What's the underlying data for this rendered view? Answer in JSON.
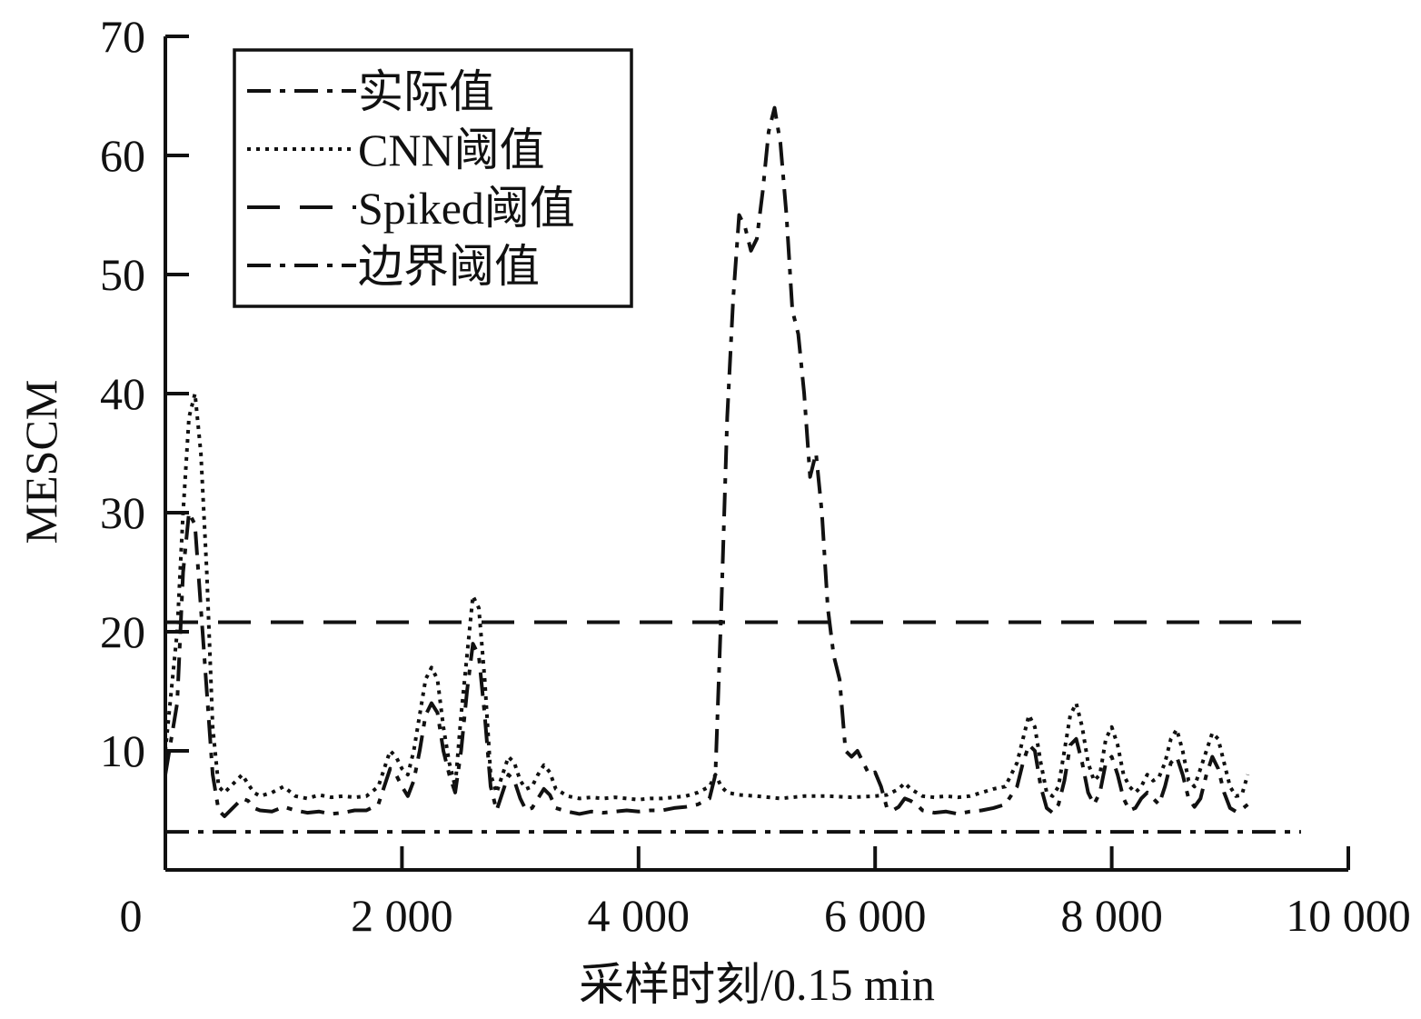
{
  "chart_data": {
    "type": "line",
    "xlabel": "采样时刻/0.15 min",
    "ylabel": "MESCM",
    "xlim": [
      0,
      10000
    ],
    "ylim": [
      0,
      70
    ],
    "xticks": [
      0,
      2000,
      4000,
      6000,
      8000,
      10000
    ],
    "xtick_labels": [
      "0",
      "2 000",
      "4 000",
      "6 000",
      "8 000",
      "10 000"
    ],
    "yticks": [
      10,
      20,
      30,
      40,
      50,
      60,
      70
    ],
    "ytick_labels": [
      "10",
      "20",
      "30",
      "40",
      "50",
      "60",
      "70"
    ],
    "grid": false,
    "legend_position": "top-left",
    "series": [
      {
        "name": "实际值",
        "dash": "dashdot",
        "points": [
          [
            0,
            8
          ],
          [
            100,
            14
          ],
          [
            150,
            25
          ],
          [
            200,
            30
          ],
          [
            250,
            29
          ],
          [
            300,
            22
          ],
          [
            350,
            15
          ],
          [
            400,
            8
          ],
          [
            450,
            5
          ],
          [
            500,
            4.5
          ],
          [
            550,
            5
          ],
          [
            600,
            5.5
          ],
          [
            650,
            6
          ],
          [
            700,
            5.8
          ],
          [
            750,
            5.2
          ],
          [
            800,
            5
          ],
          [
            900,
            4.9
          ],
          [
            1000,
            5.3
          ],
          [
            1100,
            5
          ],
          [
            1200,
            4.8
          ],
          [
            1300,
            4.9
          ],
          [
            1400,
            4.7
          ],
          [
            1500,
            4.8
          ],
          [
            1600,
            5
          ],
          [
            1700,
            5
          ],
          [
            1800,
            5.5
          ],
          [
            1850,
            7
          ],
          [
            1900,
            8.5
          ],
          [
            1950,
            8
          ],
          [
            2000,
            7
          ],
          [
            2050,
            6.2
          ],
          [
            2100,
            7.5
          ],
          [
            2150,
            10
          ],
          [
            2200,
            13
          ],
          [
            2250,
            14
          ],
          [
            2300,
            13.2
          ],
          [
            2350,
            10
          ],
          [
            2400,
            8
          ],
          [
            2450,
            6.5
          ],
          [
            2500,
            10
          ],
          [
            2550,
            15
          ],
          [
            2600,
            19
          ],
          [
            2650,
            18
          ],
          [
            2700,
            13
          ],
          [
            2750,
            7
          ],
          [
            2800,
            5
          ],
          [
            2850,
            6.5
          ],
          [
            2900,
            8
          ],
          [
            2950,
            7.5
          ],
          [
            3000,
            6
          ],
          [
            3050,
            5
          ],
          [
            3100,
            5.2
          ],
          [
            3150,
            6
          ],
          [
            3200,
            6.8
          ],
          [
            3250,
            6.3
          ],
          [
            3300,
            5.2
          ],
          [
            3400,
            4.9
          ],
          [
            3500,
            4.7
          ],
          [
            3600,
            4.9
          ],
          [
            3700,
            4.8
          ],
          [
            3800,
            4.9
          ],
          [
            3900,
            5
          ],
          [
            4000,
            4.9
          ],
          [
            4100,
            5
          ],
          [
            4200,
            5
          ],
          [
            4300,
            5.2
          ],
          [
            4400,
            5.3
          ],
          [
            4500,
            5.5
          ],
          [
            4600,
            6
          ],
          [
            4650,
            8
          ],
          [
            4700,
            22
          ],
          [
            4750,
            38
          ],
          [
            4800,
            48
          ],
          [
            4850,
            55
          ],
          [
            4900,
            54
          ],
          [
            4950,
            52
          ],
          [
            5000,
            53
          ],
          [
            5050,
            57
          ],
          [
            5100,
            62
          ],
          [
            5150,
            64
          ],
          [
            5200,
            61
          ],
          [
            5250,
            55
          ],
          [
            5300,
            47
          ],
          [
            5350,
            45
          ],
          [
            5400,
            40
          ],
          [
            5450,
            33
          ],
          [
            5500,
            35
          ],
          [
            5550,
            30
          ],
          [
            5600,
            22
          ],
          [
            5650,
            18
          ],
          [
            5700,
            16
          ],
          [
            5750,
            10
          ],
          [
            5800,
            9.5
          ],
          [
            5850,
            10
          ],
          [
            5900,
            9
          ],
          [
            5950,
            8
          ],
          [
            6000,
            8.2
          ],
          [
            6050,
            7
          ],
          [
            6100,
            5.2
          ],
          [
            6150,
            5
          ],
          [
            6200,
            5.3
          ],
          [
            6250,
            6
          ],
          [
            6300,
            5.8
          ],
          [
            6350,
            5.5
          ],
          [
            6400,
            5
          ],
          [
            6500,
            4.8
          ],
          [
            6600,
            4.9
          ],
          [
            6700,
            4.7
          ],
          [
            6800,
            4.9
          ],
          [
            6900,
            5
          ],
          [
            7000,
            5.2
          ],
          [
            7100,
            5.5
          ],
          [
            7200,
            7
          ],
          [
            7250,
            9
          ],
          [
            7300,
            10.5
          ],
          [
            7350,
            10
          ],
          [
            7400,
            7
          ],
          [
            7450,
            5.2
          ],
          [
            7500,
            4.8
          ],
          [
            7550,
            5.5
          ],
          [
            7600,
            7.5
          ],
          [
            7650,
            10.5
          ],
          [
            7700,
            11
          ],
          [
            7750,
            9
          ],
          [
            7800,
            6.5
          ],
          [
            7850,
            5.5
          ],
          [
            7900,
            6.5
          ],
          [
            7950,
            9
          ],
          [
            8000,
            9.5
          ],
          [
            8050,
            8
          ],
          [
            8100,
            6
          ],
          [
            8150,
            5
          ],
          [
            8200,
            5.2
          ],
          [
            8250,
            6
          ],
          [
            8300,
            6.5
          ],
          [
            8350,
            6
          ],
          [
            8400,
            5.5
          ],
          [
            8450,
            7
          ],
          [
            8500,
            9
          ],
          [
            8550,
            9.5
          ],
          [
            8600,
            8
          ],
          [
            8650,
            6
          ],
          [
            8700,
            5.3
          ],
          [
            8750,
            6
          ],
          [
            8800,
            8
          ],
          [
            8850,
            9.5
          ],
          [
            8900,
            8.5
          ],
          [
            8950,
            6.5
          ],
          [
            9000,
            5.2
          ],
          [
            9050,
            4.9
          ],
          [
            9100,
            5.1
          ],
          [
            9150,
            5.5
          ]
        ]
      },
      {
        "name": "CNN阈值",
        "dash": "dotted",
        "points": [
          [
            0,
            10
          ],
          [
            100,
            20
          ],
          [
            150,
            30
          ],
          [
            200,
            38
          ],
          [
            250,
            40
          ],
          [
            300,
            35
          ],
          [
            350,
            25
          ],
          [
            400,
            12
          ],
          [
            450,
            7
          ],
          [
            500,
            6.5
          ],
          [
            550,
            7
          ],
          [
            600,
            7.5
          ],
          [
            650,
            8
          ],
          [
            700,
            7.2
          ],
          [
            750,
            6.5
          ],
          [
            800,
            6.2
          ],
          [
            900,
            6.5
          ],
          [
            1000,
            7
          ],
          [
            1100,
            6.2
          ],
          [
            1200,
            6
          ],
          [
            1300,
            6.3
          ],
          [
            1400,
            6.1
          ],
          [
            1500,
            6.2
          ],
          [
            1600,
            6.1
          ],
          [
            1700,
            6.2
          ],
          [
            1800,
            7
          ],
          [
            1850,
            8.5
          ],
          [
            1900,
            10
          ],
          [
            1950,
            9.5
          ],
          [
            2000,
            8.5
          ],
          [
            2050,
            8
          ],
          [
            2100,
            10
          ],
          [
            2150,
            13
          ],
          [
            2200,
            16
          ],
          [
            2250,
            17
          ],
          [
            2300,
            16
          ],
          [
            2350,
            12
          ],
          [
            2400,
            9
          ],
          [
            2450,
            7
          ],
          [
            2500,
            13
          ],
          [
            2550,
            18
          ],
          [
            2600,
            23
          ],
          [
            2650,
            22
          ],
          [
            2700,
            16
          ],
          [
            2750,
            8
          ],
          [
            2800,
            6.5
          ],
          [
            2850,
            8
          ],
          [
            2900,
            9.5
          ],
          [
            2950,
            9
          ],
          [
            3000,
            7.5
          ],
          [
            3050,
            6.8
          ],
          [
            3100,
            7
          ],
          [
            3150,
            8
          ],
          [
            3200,
            8.8
          ],
          [
            3250,
            8.2
          ],
          [
            3300,
            6.8
          ],
          [
            3400,
            6.2
          ],
          [
            3500,
            6
          ],
          [
            3600,
            6.1
          ],
          [
            3700,
            6
          ],
          [
            3800,
            6.1
          ],
          [
            3900,
            6
          ],
          [
            4000,
            5.9
          ],
          [
            4100,
            6
          ],
          [
            4200,
            6
          ],
          [
            4300,
            6.1
          ],
          [
            4400,
            6.2
          ],
          [
            4500,
            6.5
          ],
          [
            4600,
            7
          ],
          [
            4650,
            8
          ],
          [
            4700,
            7
          ],
          [
            4750,
            6.5
          ],
          [
            4850,
            6.3
          ],
          [
            5000,
            6.2
          ],
          [
            5200,
            6
          ],
          [
            5400,
            6.2
          ],
          [
            5600,
            6.2
          ],
          [
            5800,
            6.1
          ],
          [
            6000,
            6.2
          ],
          [
            6100,
            6.3
          ],
          [
            6200,
            6.8
          ],
          [
            6250,
            7.3
          ],
          [
            6300,
            6.8
          ],
          [
            6400,
            6.2
          ],
          [
            6500,
            6.1
          ],
          [
            6600,
            6.2
          ],
          [
            6700,
            6.1
          ],
          [
            6800,
            6.2
          ],
          [
            6900,
            6.5
          ],
          [
            7000,
            6.8
          ],
          [
            7100,
            7
          ],
          [
            7200,
            9
          ],
          [
            7250,
            11
          ],
          [
            7300,
            13
          ],
          [
            7350,
            12
          ],
          [
            7400,
            9
          ],
          [
            7450,
            6.5
          ],
          [
            7500,
            6.2
          ],
          [
            7550,
            7
          ],
          [
            7600,
            10
          ],
          [
            7650,
            13
          ],
          [
            7700,
            14
          ],
          [
            7750,
            12
          ],
          [
            7800,
            9
          ],
          [
            7850,
            7.5
          ],
          [
            7900,
            8
          ],
          [
            7950,
            11
          ],
          [
            8000,
            12
          ],
          [
            8050,
            10.5
          ],
          [
            8100,
            8
          ],
          [
            8150,
            7
          ],
          [
            8200,
            6.5
          ],
          [
            8250,
            7
          ],
          [
            8300,
            8
          ],
          [
            8350,
            7.5
          ],
          [
            8400,
            7.8
          ],
          [
            8450,
            9
          ],
          [
            8500,
            11
          ],
          [
            8550,
            11.8
          ],
          [
            8600,
            10
          ],
          [
            8650,
            7.5
          ],
          [
            8700,
            7
          ],
          [
            8750,
            8.5
          ],
          [
            8800,
            10
          ],
          [
            8850,
            11.5
          ],
          [
            8900,
            11
          ],
          [
            8950,
            9
          ],
          [
            9000,
            7
          ],
          [
            9050,
            6.2
          ],
          [
            9100,
            6.3
          ],
          [
            9150,
            8
          ]
        ]
      },
      {
        "name": "Spiked阈值",
        "dash": "dashed",
        "points": [
          [
            0,
            20.8
          ],
          [
            9600,
            20.8
          ]
        ]
      },
      {
        "name": "边界阈值",
        "dash": "dashdot",
        "points": [
          [
            0,
            3.2
          ],
          [
            9600,
            3.2
          ]
        ]
      }
    ]
  }
}
